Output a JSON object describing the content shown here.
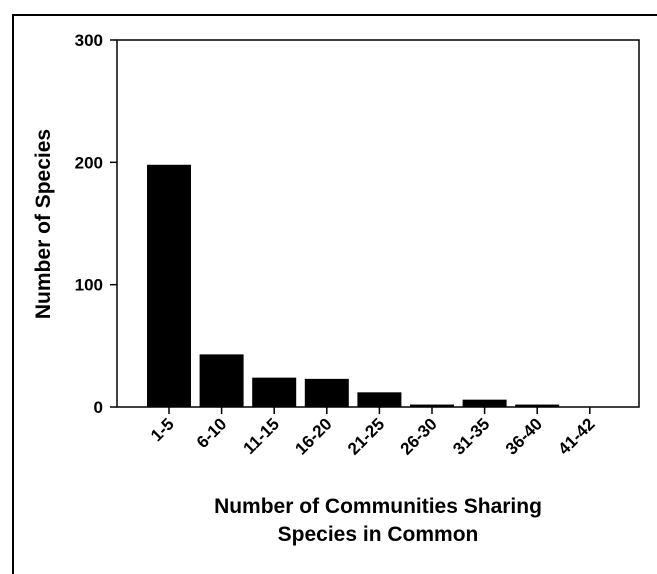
{
  "chart_data": {
    "type": "bar",
    "title": "",
    "xlabel": "Number of Communities Sharing Species in Common",
    "xlabel_lines": [
      "Number of Communities Sharing",
      "Species in Common"
    ],
    "ylabel": "Number of Species",
    "categories": [
      "1-5",
      "6-10",
      "11-15",
      "16-20",
      "21-25",
      "26-30",
      "31-35",
      "36-40",
      "41-42"
    ],
    "values": [
      198,
      43,
      24,
      23,
      12,
      2,
      6,
      2,
      0
    ],
    "ylim": [
      0,
      300
    ],
    "yticks": [
      0,
      100,
      200,
      300
    ],
    "ytick_labels": [
      "0",
      "100",
      "200",
      "300"
    ],
    "grid": false,
    "legend": "none",
    "bar_color": "#000000"
  }
}
